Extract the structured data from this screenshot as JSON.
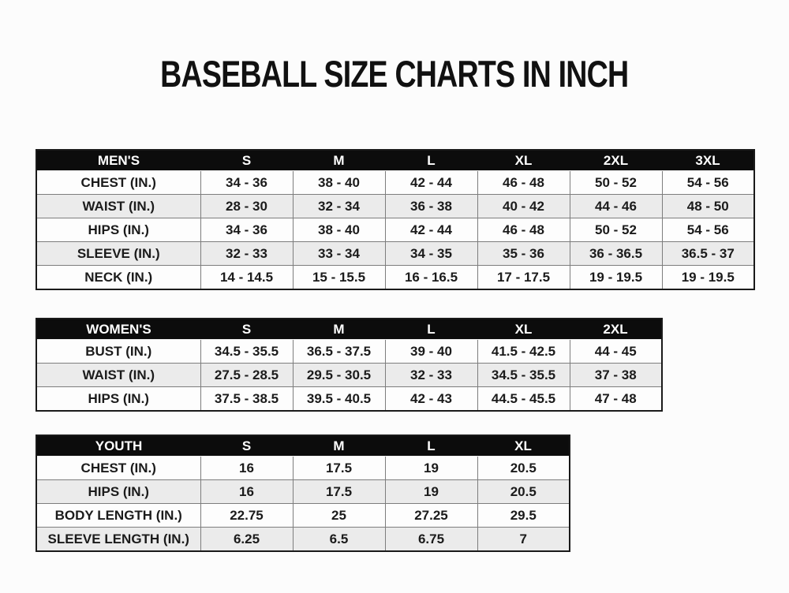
{
  "page": {
    "title": "BASEBALL SIZE CHARTS IN INCH"
  },
  "colors": {
    "header_bg": "#0c0c0c",
    "header_text": "#ffffff",
    "row_bg": "#fdfdfd",
    "row_alt_bg": "#ebebeb",
    "grid_line": "#7d7d7d",
    "outer_border": "#1a1a1a",
    "text": "#1b1b1b"
  },
  "tables": [
    {
      "name": "mens",
      "header": [
        "MEN'S",
        "S",
        "M",
        "L",
        "XL",
        "2XL",
        "3XL"
      ],
      "rows": [
        [
          "CHEST (IN.)",
          "34 - 36",
          "38 - 40",
          "42 - 44",
          "46 - 48",
          "50 - 52",
          "54 - 56"
        ],
        [
          "WAIST (IN.)",
          "28 - 30",
          "32 - 34",
          "36 - 38",
          "40 - 42",
          "44 - 46",
          "48 - 50"
        ],
        [
          "HIPS (IN.)",
          "34 - 36",
          "38 - 40",
          "42 - 44",
          "46 - 48",
          "50 - 52",
          "54 - 56"
        ],
        [
          "SLEEVE (IN.)",
          "32 - 33",
          "33 - 34",
          "34 - 35",
          "35 - 36",
          "36 - 36.5",
          "36.5 - 37"
        ],
        [
          "NECK (IN.)",
          "14 - 14.5",
          "15 - 15.5",
          "16 - 16.5",
          "17 - 17.5",
          "19 - 19.5",
          "19 - 19.5"
        ]
      ]
    },
    {
      "name": "womens",
      "header": [
        "WOMEN'S",
        "S",
        "M",
        "L",
        "XL",
        "2XL"
      ],
      "rows": [
        [
          "BUST (IN.)",
          "34.5 - 35.5",
          "36.5 - 37.5",
          "39 - 40",
          "41.5 - 42.5",
          "44 - 45"
        ],
        [
          "WAIST (IN.)",
          "27.5 - 28.5",
          "29.5 - 30.5",
          "32 - 33",
          "34.5 - 35.5",
          "37 - 38"
        ],
        [
          "HIPS (IN.)",
          "37.5 - 38.5",
          "39.5 - 40.5",
          "42 - 43",
          "44.5 - 45.5",
          "47 - 48"
        ]
      ]
    },
    {
      "name": "youth",
      "header": [
        "YOUTH",
        "S",
        "M",
        "L",
        "XL"
      ],
      "rows": [
        [
          "CHEST (IN.)",
          "16",
          "17.5",
          "19",
          "20.5"
        ],
        [
          "HIPS (IN.)",
          "16",
          "17.5",
          "19",
          "20.5"
        ],
        [
          "BODY LENGTH (IN.)",
          "22.75",
          "25",
          "27.25",
          "29.5"
        ],
        [
          "SLEEVE LENGTH (IN.)",
          "6.25",
          "6.5",
          "6.75",
          "7"
        ]
      ]
    }
  ]
}
